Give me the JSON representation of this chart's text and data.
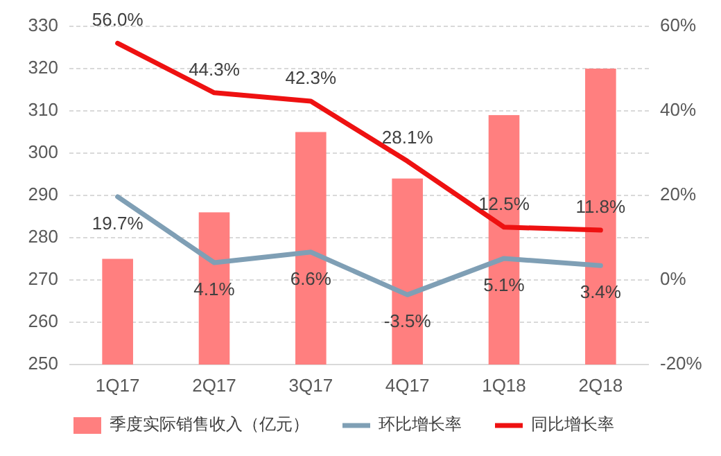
{
  "chart_data": {
    "type": "bar",
    "categories": [
      "1Q17",
      "2Q17",
      "3Q17",
      "4Q17",
      "1Q18",
      "2Q18"
    ],
    "series": [
      {
        "name": "季度实际销售收入（亿元）",
        "color": "#ff7f7f",
        "values": [
          275,
          286,
          305,
          294,
          309,
          320
        ]
      },
      {
        "name": "环比增长率",
        "type": "line",
        "axis": "y2",
        "color": "#7f9fb5",
        "values": [
          19.7,
          4.1,
          6.6,
          -3.5,
          5.1,
          3.4
        ],
        "value_labels": [
          "19.7%",
          "4.1%",
          "6.6%",
          "-3.5%",
          "5.1%",
          "3.4%"
        ]
      },
      {
        "name": "同比增长率",
        "type": "line",
        "axis": "y2",
        "color": "#ee1111",
        "values": [
          56.0,
          44.3,
          42.3,
          28.1,
          12.5,
          11.8
        ],
        "value_labels": [
          "56.0%",
          "44.3%",
          "42.3%",
          "28.1%",
          "12.5%",
          "11.8%"
        ]
      }
    ],
    "ylim": [
      250,
      330
    ],
    "yticks": [
      250,
      260,
      270,
      280,
      290,
      300,
      310,
      320,
      330
    ],
    "y2lim": [
      -20,
      60
    ],
    "y2ticks": [
      {
        "value": -20,
        "label": "-20%"
      },
      {
        "value": 0,
        "label": "0%"
      },
      {
        "value": 20,
        "label": "20%"
      },
      {
        "value": 40,
        "label": "40%"
      },
      {
        "value": 60,
        "label": "60%"
      }
    ],
    "grid": "y",
    "legend": "bottom",
    "marker": "none",
    "line_style": "solid"
  }
}
